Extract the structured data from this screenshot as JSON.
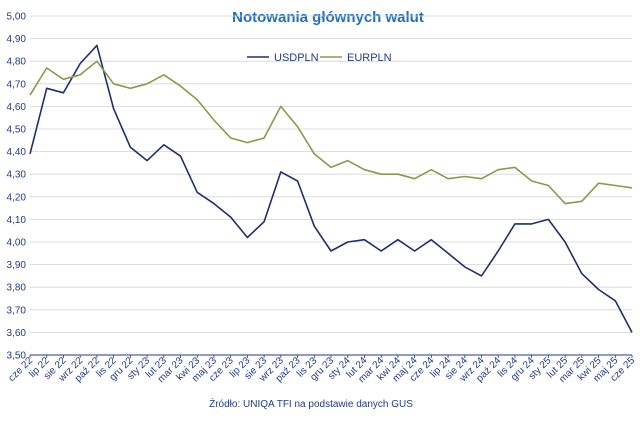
{
  "chart_data": {
    "type": "line",
    "title": "Notowania głównych walut",
    "source": "Źródło: UNIQA TFI na podstawie danych GUS",
    "legend_position": "top-center",
    "grid": true,
    "ylim": [
      3.5,
      5.0
    ],
    "y_ticks": [
      "3,50",
      "3,60",
      "3,70",
      "3,80",
      "3,90",
      "4,00",
      "4,10",
      "4,20",
      "4,30",
      "4,40",
      "4,50",
      "4,60",
      "4,70",
      "4,80",
      "4,90",
      "5,00"
    ],
    "x": [
      "cze 22",
      "lip 22",
      "sie 22",
      "wrz 22",
      "paź 22",
      "lis 22",
      "gru 22",
      "sty 23",
      "lut 23",
      "mar 23",
      "kwi 23",
      "maj 23",
      "cze 23",
      "lip 23",
      "sie 23",
      "wrz 23",
      "paź 23",
      "lis 23",
      "gru 23",
      "sty 24",
      "lut 24",
      "mar 24",
      "kwi 24",
      "maj 24",
      "cze 24",
      "lip 24",
      "sie 24",
      "wrz 24",
      "paź 24",
      "lis 24",
      "gru 24",
      "sty 25",
      "lut 25",
      "mar 25",
      "kwi 25",
      "maj 25",
      "cze 25"
    ],
    "series": [
      {
        "name": "USDPLN",
        "color": "#1f2f6e",
        "values": [
          4.39,
          4.68,
          4.66,
          4.79,
          4.87,
          4.59,
          4.42,
          4.36,
          4.43,
          4.38,
          4.22,
          4.17,
          4.11,
          4.02,
          4.09,
          4.31,
          4.27,
          4.07,
          3.96,
          4.0,
          4.01,
          3.96,
          4.01,
          3.96,
          4.01,
          3.95,
          3.89,
          3.85,
          3.96,
          4.08,
          4.08,
          4.1,
          4.0,
          3.86,
          3.79,
          3.74,
          3.6
        ]
      },
      {
        "name": "EURPLN",
        "color": "#8a9a4a",
        "values": [
          4.65,
          4.77,
          4.72,
          4.74,
          4.8,
          4.7,
          4.68,
          4.7,
          4.74,
          4.69,
          4.63,
          4.54,
          4.46,
          4.44,
          4.46,
          4.6,
          4.51,
          4.39,
          4.33,
          4.36,
          4.32,
          4.3,
          4.3,
          4.28,
          4.32,
          4.28,
          4.29,
          4.28,
          4.32,
          4.33,
          4.27,
          4.25,
          4.17,
          4.18,
          4.26,
          4.25,
          4.24
        ]
      }
    ]
  },
  "colors": {
    "title": "#1f6fbf",
    "axis": "#1f3b8a",
    "grid": "#d4d4d4"
  }
}
